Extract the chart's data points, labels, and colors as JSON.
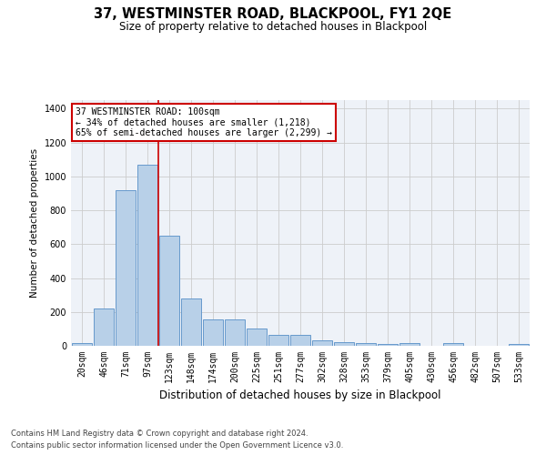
{
  "title": "37, WESTMINSTER ROAD, BLACKPOOL, FY1 2QE",
  "subtitle": "Size of property relative to detached houses in Blackpool",
  "xlabel": "Distribution of detached houses by size in Blackpool",
  "ylabel": "Number of detached properties",
  "footer_line1": "Contains HM Land Registry data © Crown copyright and database right 2024.",
  "footer_line2": "Contains public sector information licensed under the Open Government Licence v3.0.",
  "categories": [
    "20sqm",
    "46sqm",
    "71sqm",
    "97sqm",
    "123sqm",
    "148sqm",
    "174sqm",
    "200sqm",
    "225sqm",
    "251sqm",
    "277sqm",
    "302sqm",
    "328sqm",
    "353sqm",
    "379sqm",
    "405sqm",
    "430sqm",
    "456sqm",
    "482sqm",
    "507sqm",
    "533sqm"
  ],
  "values": [
    15,
    220,
    920,
    1070,
    650,
    280,
    155,
    155,
    100,
    65,
    65,
    30,
    22,
    18,
    10,
    15,
    0,
    15,
    0,
    0,
    10
  ],
  "bar_color": "#b8d0e8",
  "bar_edge_color": "#6699cc",
  "bar_edge_width": 0.7,
  "grid_color": "#cccccc",
  "bg_color": "#eef2f8",
  "annotation_text": "37 WESTMINSTER ROAD: 100sqm\n← 34% of detached houses are smaller (1,218)\n65% of semi-detached houses are larger (2,299) →",
  "annotation_box_color": "#ffffff",
  "annotation_box_edge": "#cc0000",
  "red_line_x": 3.5,
  "ylim": [
    0,
    1450
  ],
  "yticks": [
    0,
    200,
    400,
    600,
    800,
    1000,
    1200,
    1400
  ],
  "title_fontsize": 10.5,
  "subtitle_fontsize": 8.5,
  "ylabel_fontsize": 7.5,
  "xlabel_fontsize": 8.5,
  "tick_fontsize": 7,
  "ann_fontsize": 7,
  "footer_fontsize": 6
}
